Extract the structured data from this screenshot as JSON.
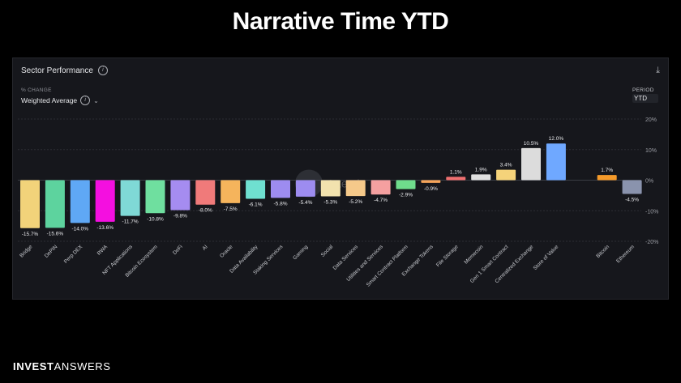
{
  "headline": "Narrative Time YTD",
  "panel": {
    "title": "Sector Performance",
    "metric_label": "% CHANGE",
    "metric_value": "Weighted Average",
    "period_label": "PERIOD",
    "period_value": "YTD",
    "watermark": "Artemis"
  },
  "brand": {
    "part1": "INVEST",
    "part2": "ANSWERS"
  },
  "chart_data": {
    "type": "bar",
    "title": "Sector Performance",
    "ylabel": "% CHANGE",
    "ylim": [
      -20,
      20
    ],
    "yticks": [
      20,
      10,
      0,
      -10,
      -20
    ],
    "ytick_labels": [
      "20%",
      "10%",
      "0%",
      "-10%",
      "-20%"
    ],
    "grid": true,
    "categories": [
      "Bridge",
      "DePIN",
      "Perp DEX",
      "RWA",
      "NFT Applications",
      "Bitcoin Ecosystem",
      "DeFi",
      "AI",
      "Oracle",
      "Data Availability",
      "Staking Services",
      "Gaming",
      "Social",
      "Data Services",
      "Utilities and Services",
      "Smart Contract Platform",
      "Exchange Tokens",
      "File Storage",
      "Memecoin",
      "Gen 1 Smart Contract",
      "Centralized Exchange",
      "Store of Value",
      "Bitcoin",
      "Ethereum"
    ],
    "values": [
      -15.7,
      -15.6,
      -14.0,
      -13.6,
      -11.7,
      -10.8,
      -9.8,
      -8.0,
      -7.5,
      -6.1,
      -5.8,
      -5.4,
      -5.3,
      -5.2,
      -4.7,
      -2.9,
      -0.9,
      1.1,
      1.9,
      3.4,
      10.5,
      12.0,
      1.7,
      -4.5
    ],
    "labels": [
      "-15.7%",
      "-15.6%",
      "-14.0%",
      "-13.6%",
      "-11.7%",
      "-10.8%",
      "-9.8%",
      "-8.0%",
      "-7.5%",
      "-6.1%",
      "-5.8%",
      "-5.4%",
      "-5.3%",
      "-5.2%",
      "-4.7%",
      "-2.9%",
      "-0.9%",
      "1.1%",
      "1.9%",
      "3.4%",
      "10.5%",
      "12.0%",
      "1.7%",
      "-4.5%"
    ],
    "colors": [
      "#f2d37a",
      "#5dd39e",
      "#5fa8f5",
      "#f40fe0",
      "#7fd9d6",
      "#6fdf9f",
      "#a58cf0",
      "#f07a7a",
      "#f5b45c",
      "#6fe0d0",
      "#9d8cf0",
      "#9d8cf0",
      "#f2e2ae",
      "#f5c98a",
      "#f5a0a0",
      "#6fdc8c",
      "#f5a45a",
      "#f07070",
      "#e0e0e0",
      "#f5d37a",
      "#dcdcdc",
      "#6fa8ff",
      "#f59a2a",
      "#8a93ad"
    ]
  }
}
